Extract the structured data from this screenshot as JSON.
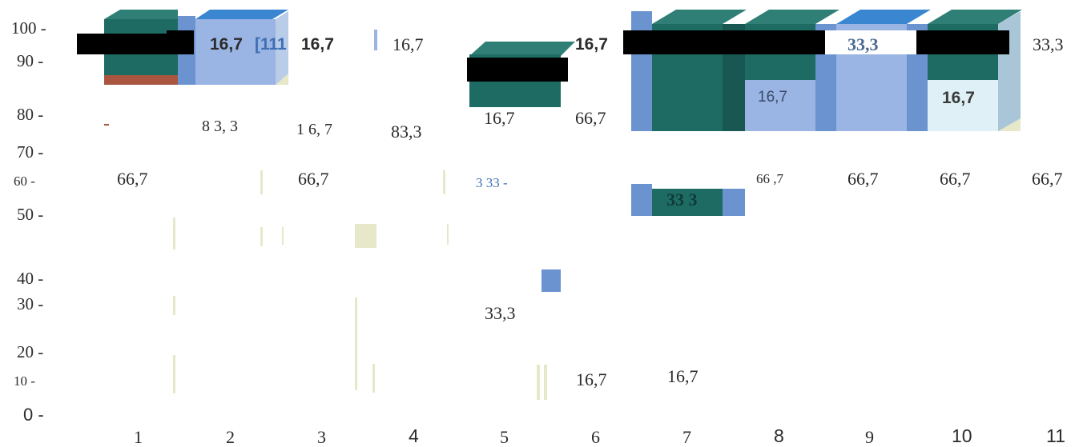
{
  "chart_data": {
    "type": "bar",
    "title": "",
    "xlabel": "",
    "ylabel": "",
    "ylim": [
      0,
      100
    ],
    "y_ticks": [
      "100 -",
      "90 -",
      "80 -",
      "70 -",
      "60 -",
      "50 -",
      "40 -",
      "30 -",
      "20 -",
      "10 -",
      "0 -"
    ],
    "categories": [
      "1",
      "2",
      "3",
      "4",
      "5",
      "6",
      "7",
      "8",
      "9",
      "10",
      "11"
    ],
    "data_labels_top": [
      "16,7",
      "[111",
      "16,7",
      "16,7",
      "16,7",
      "33,3",
      "33,3"
    ],
    "data_labels_mid": [
      "8 3, 3",
      "1 6, 7",
      "83,3",
      "16,7",
      "66,7",
      "16,7",
      "16,7"
    ],
    "data_labels_low": [
      "66,7",
      "66,7",
      "3 33 -",
      "66 ,7",
      "66,7",
      "66,7",
      "66,7",
      "33 3"
    ],
    "data_labels_bottom": [
      "33,3",
      "16,7",
      "16,7"
    ],
    "colors": {
      "teal": "#1d6b63",
      "teal_top": "#2f7f76",
      "light_blue": "#9ab4e3",
      "mid_blue": "#6b93d0",
      "pale": "#e6e8c9",
      "rust": "#a9553f",
      "label_blue": "#3f6fb3"
    }
  }
}
